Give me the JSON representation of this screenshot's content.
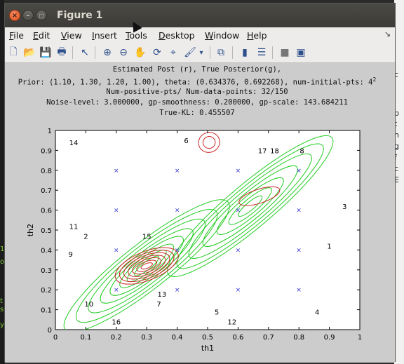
{
  "window": {
    "title": "Figure 1",
    "close_glyph": "×",
    "minimize_glyph": "–",
    "maximize_glyph": "□"
  },
  "menu": [
    {
      "label": "File",
      "accel": "F",
      "rest": "ile"
    },
    {
      "label": "Edit",
      "accel": "E",
      "rest": "dit"
    },
    {
      "label": "View",
      "accel": "V",
      "rest": "iew"
    },
    {
      "label": "Insert",
      "accel": "I",
      "rest": "nsert"
    },
    {
      "label": "Tools",
      "accel": "T",
      "rest": "ools"
    },
    {
      "label": "Desktop",
      "accel": "D",
      "rest": "esktop"
    },
    {
      "label": "Window",
      "accel": "W",
      "rest": "indow"
    },
    {
      "label": "Help",
      "accel": "H",
      "rest": "elp"
    }
  ],
  "menu_overflow_glyph": "↘",
  "toolbar": [
    {
      "name": "new-figure-icon",
      "glyph": "🗋"
    },
    {
      "name": "open-file-icon",
      "glyph": "📂"
    },
    {
      "name": "save-icon",
      "glyph": "💾"
    },
    {
      "name": "print-icon",
      "glyph": "🖶"
    },
    {
      "name": "edit-plot-arrow-icon",
      "glyph": "↖"
    },
    {
      "name": "zoom-in-icon",
      "glyph": "⊕"
    },
    {
      "name": "zoom-out-icon",
      "glyph": "⊖"
    },
    {
      "name": "pan-hand-icon",
      "glyph": "✋"
    },
    {
      "name": "rotate-3d-icon",
      "glyph": "⟳"
    },
    {
      "name": "data-cursor-icon",
      "glyph": "⌖"
    },
    {
      "name": "brush-icon",
      "glyph": "🖌"
    },
    {
      "name": "brush-dropdown-icon",
      "glyph": "▾"
    },
    {
      "name": "link-plot-icon",
      "glyph": "⧉"
    },
    {
      "name": "colorbar-icon",
      "glyph": "▮"
    },
    {
      "name": "legend-icon",
      "glyph": "☰"
    },
    {
      "name": "hide-plot-tools-icon",
      "glyph": "■"
    },
    {
      "name": "show-plot-tools-icon",
      "glyph": "▣"
    }
  ],
  "figure": {
    "title_lines": [
      "Estimated Post (r), True Posterior(g),",
      "Prior: (1.10, 1.30, 1.20, 1.00), theta: (0.634376, 0.692268), num-initial-pts: 4",
      "Num-positive-pts/ Num-data-points: 32/150",
      "Noise-level: 3.000000, gp-smoothness: 0.200000, gp-scale: 143.684211",
      "True-KL: 0.455507"
    ],
    "superscript": "2"
  },
  "chart_data": {
    "type": "scatter",
    "xlabel": "th1",
    "ylabel": "th2",
    "xlim": [
      0,
      1
    ],
    "ylim": [
      0,
      1
    ],
    "xticks": [
      "0",
      "0.1",
      "0.2",
      "0.3",
      "0.4",
      "0.5",
      "0.6",
      "0.7",
      "0.8",
      "0.9",
      "1"
    ],
    "yticks": [
      "0",
      "0.1",
      "0.2",
      "0.3",
      "0.4",
      "0.5",
      "0.6",
      "0.7",
      "0.8",
      "0.9",
      "1"
    ],
    "grid": false,
    "colors": {
      "true_posterior": "#22cc22",
      "estimated_posterior": "#cc2222",
      "points": "#3333cc"
    },
    "points": [
      {
        "x": 0.2,
        "y": 0.8
      },
      {
        "x": 0.4,
        "y": 0.8
      },
      {
        "x": 0.6,
        "y": 0.8
      },
      {
        "x": 0.8,
        "y": 0.8
      },
      {
        "x": 0.2,
        "y": 0.6
      },
      {
        "x": 0.4,
        "y": 0.6
      },
      {
        "x": 0.6,
        "y": 0.6
      },
      {
        "x": 0.8,
        "y": 0.6
      },
      {
        "x": 0.2,
        "y": 0.4
      },
      {
        "x": 0.4,
        "y": 0.4
      },
      {
        "x": 0.6,
        "y": 0.4
      },
      {
        "x": 0.8,
        "y": 0.4
      },
      {
        "x": 0.2,
        "y": 0.2
      },
      {
        "x": 0.4,
        "y": 0.2
      },
      {
        "x": 0.6,
        "y": 0.2
      },
      {
        "x": 0.8,
        "y": 0.2
      }
    ],
    "labels": [
      {
        "text": "14",
        "x": 0.06,
        "y": 0.94
      },
      {
        "text": "6",
        "x": 0.43,
        "y": 0.95
      },
      {
        "text": "17",
        "x": 0.68,
        "y": 0.9
      },
      {
        "text": "18",
        "x": 0.72,
        "y": 0.9
      },
      {
        "text": "8",
        "x": 0.81,
        "y": 0.9
      },
      {
        "text": "3",
        "x": 0.95,
        "y": 0.62
      },
      {
        "text": "11",
        "x": 0.06,
        "y": 0.52
      },
      {
        "text": "2",
        "x": 0.1,
        "y": 0.47
      },
      {
        "text": "15",
        "x": 0.3,
        "y": 0.47
      },
      {
        "text": "1",
        "x": 0.9,
        "y": 0.42
      },
      {
        "text": "9",
        "x": 0.05,
        "y": 0.38
      },
      {
        "text": "13",
        "x": 0.35,
        "y": 0.18
      },
      {
        "text": "7",
        "x": 0.34,
        "y": 0.13
      },
      {
        "text": "10",
        "x": 0.11,
        "y": 0.13
      },
      {
        "text": "5",
        "x": 0.53,
        "y": 0.09
      },
      {
        "text": "12",
        "x": 0.58,
        "y": 0.04
      },
      {
        "text": "4",
        "x": 0.86,
        "y": 0.09
      },
      {
        "text": "16",
        "x": 0.2,
        "y": 0.04
      }
    ],
    "true_posterior_modes": [
      {
        "cx": 0.3,
        "cy": 0.32,
        "angle_deg": -38,
        "radii": [
          [
            0.05,
            0.02
          ],
          [
            0.08,
            0.032
          ],
          [
            0.11,
            0.045
          ],
          [
            0.15,
            0.058
          ],
          [
            0.19,
            0.07
          ],
          [
            0.24,
            0.085
          ],
          [
            0.29,
            0.1
          ],
          [
            0.34,
            0.115
          ]
        ]
      },
      {
        "cx": 0.64,
        "cy": 0.62,
        "angle_deg": -40,
        "radii": [
          [
            0.05,
            0.02
          ],
          [
            0.09,
            0.035
          ],
          [
            0.14,
            0.05
          ],
          [
            0.2,
            0.065
          ],
          [
            0.26,
            0.08
          ],
          [
            0.31,
            0.095
          ],
          [
            0.35,
            0.11
          ]
        ]
      }
    ],
    "estimated_posterior_modes": [
      {
        "cx": 0.3,
        "cy": 0.32,
        "angle_deg": -22,
        "radii": [
          [
            0.02,
            0.012
          ],
          [
            0.035,
            0.022
          ],
          [
            0.05,
            0.032
          ],
          [
            0.065,
            0.042
          ],
          [
            0.08,
            0.052
          ],
          [
            0.095,
            0.062
          ],
          [
            0.11,
            0.072
          ]
        ]
      },
      {
        "cx": 0.67,
        "cy": 0.67,
        "angle_deg": -18,
        "radii": [
          [
            0.07,
            0.035
          ]
        ]
      },
      {
        "cx": 0.505,
        "cy": 0.94,
        "angle_deg": -20,
        "radii": [
          [
            0.02,
            0.03
          ],
          [
            0.035,
            0.05
          ]
        ]
      }
    ]
  }
}
